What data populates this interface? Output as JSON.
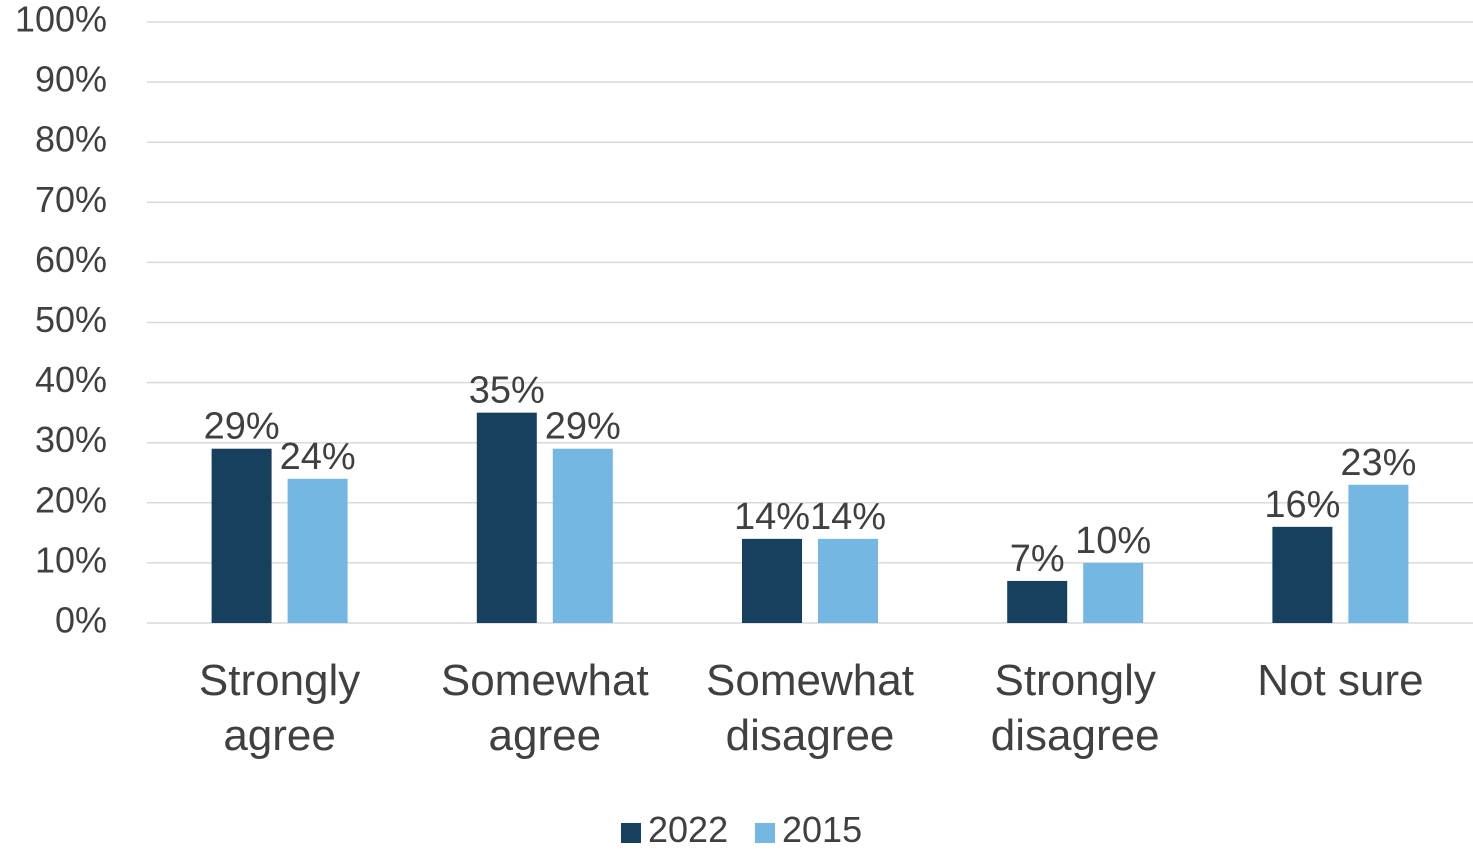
{
  "chart_data": {
    "type": "bar",
    "categories": [
      [
        "Strongly",
        "agree"
      ],
      [
        "Somewhat",
        "agree"
      ],
      [
        "Somewhat",
        "disagree"
      ],
      [
        "Strongly",
        "disagree"
      ],
      [
        "Not sure"
      ]
    ],
    "series": [
      {
        "name": "2022",
        "color": "#17405f",
        "values": [
          29,
          35,
          14,
          7,
          16
        ],
        "labels": [
          "29%",
          "35%",
          "14%",
          "7%",
          "16%"
        ]
      },
      {
        "name": "2015",
        "color": "#74b7e3",
        "values": [
          24,
          29,
          14,
          10,
          23
        ],
        "labels": [
          "24%",
          "29%",
          "14%",
          "10%",
          "23%"
        ]
      }
    ],
    "ylim": [
      0,
      100
    ],
    "y_ticks": [
      {
        "value": 0,
        "label": "0%"
      },
      {
        "value": 10,
        "label": "10%"
      },
      {
        "value": 20,
        "label": "20%"
      },
      {
        "value": 30,
        "label": "30%"
      },
      {
        "value": 40,
        "label": "40%"
      },
      {
        "value": 50,
        "label": "50%"
      },
      {
        "value": 60,
        "label": "60%"
      },
      {
        "value": 70,
        "label": "70%"
      },
      {
        "value": 80,
        "label": "80%"
      },
      {
        "value": 90,
        "label": "90%"
      },
      {
        "value": 100,
        "label": "100%"
      }
    ],
    "grid": true,
    "gridline_color": "#d9d9d9",
    "legend_placement": "bottom-center"
  }
}
